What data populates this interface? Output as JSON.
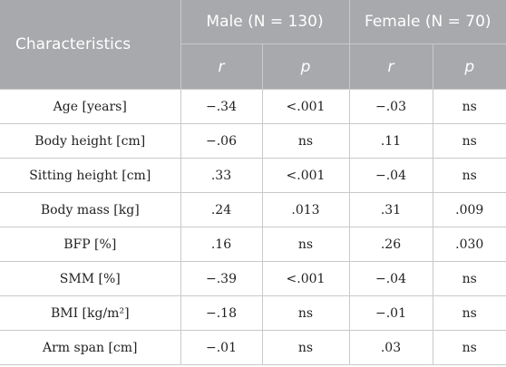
{
  "table": {
    "header": {
      "characteristics": "Characteristics",
      "male_group": "Male (N = 130)",
      "female_group": "Female (N = 70)",
      "sub": [
        "r",
        "p",
        "r",
        "p"
      ]
    },
    "rows": [
      {
        "label": "Age [years]",
        "male_r": "−.34",
        "male_p": "<.001",
        "female_r": "−.03",
        "female_p": "ns"
      },
      {
        "label": "Body height [cm]",
        "male_r": "−.06",
        "male_p": "ns",
        "female_r": ".11",
        "female_p": "ns"
      },
      {
        "label": "Sitting height [cm]",
        "male_r": ".33",
        "male_p": "<.001",
        "female_r": "−.04",
        "female_p": "ns"
      },
      {
        "label": "Body mass [kg]",
        "male_r": ".24",
        "male_p": ".013",
        "female_r": ".31",
        "female_p": ".009"
      },
      {
        "label": "BFP [%]",
        "male_r": ".16",
        "male_p": "ns",
        "female_r": ".26",
        "female_p": ".030"
      },
      {
        "label": "SMM [%]",
        "male_r": "−.39",
        "male_p": "<.001",
        "female_r": "−.04",
        "female_p": "ns"
      },
      {
        "label": "BMI [kg/m²]",
        "male_r": "−.18",
        "male_p": "ns",
        "female_r": "−.01",
        "female_p": "ns"
      },
      {
        "label": "Arm span [cm]",
        "male_r": "−.01",
        "male_p": "ns",
        "female_r": ".03",
        "female_p": "ns"
      }
    ]
  }
}
